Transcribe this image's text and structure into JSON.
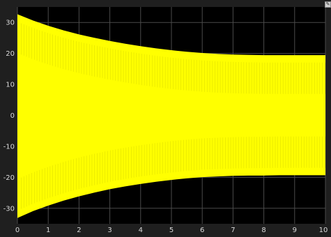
{
  "window": {
    "axes_menu_icon": "pencil-icon"
  },
  "colors": {
    "background": "#000000",
    "frame": "#1f1f1f",
    "grid": "#4a4a4a",
    "signal": "#ffff00",
    "tick_text": "#d9d9d9"
  },
  "chart_data": {
    "type": "line",
    "title": "",
    "xlabel": "",
    "ylabel": "",
    "xlim": [
      0,
      10
    ],
    "ylim": [
      -35,
      35
    ],
    "x_ticks": [
      0,
      1,
      2,
      3,
      4,
      5,
      6,
      7,
      8,
      9,
      10
    ],
    "y_ticks": [
      -30,
      -20,
      -10,
      0,
      10,
      20,
      30
    ],
    "grid": true,
    "legend": "none",
    "series": [
      {
        "color": "#ffff00",
        "description_of_shape": "",
        "upper_envelope": {
          "x": [
            0,
            0.5,
            1,
            1.5,
            2,
            2.5,
            3,
            3.5,
            4,
            4.5,
            5,
            5.5,
            6,
            6.5,
            7,
            7.5,
            8,
            8.5,
            9,
            9.5,
            10
          ],
          "y": [
            32.5,
            30.5,
            28.8,
            27.3,
            26.0,
            24.9,
            23.9,
            23.0,
            22.2,
            21.5,
            20.9,
            20.4,
            20.0,
            19.7,
            19.5,
            19.4,
            19.3,
            19.3,
            19.3,
            19.3,
            19.3
          ]
        },
        "lower_envelope": {
          "x": [
            0,
            0.5,
            1,
            1.5,
            2,
            2.5,
            3,
            3.5,
            4,
            4.5,
            5,
            5.5,
            6,
            6.5,
            7,
            7.5,
            8,
            8.5,
            9,
            9.5,
            10
          ],
          "y": [
            -33.0,
            -30.8,
            -29.0,
            -27.4,
            -26.0,
            -24.8,
            -23.7,
            -22.8,
            -22.0,
            -21.3,
            -20.7,
            -20.2,
            -19.8,
            -19.6,
            -19.4,
            -19.3,
            -19.3,
            -19.2,
            -19.2,
            -19.2,
            -19.2
          ]
        }
      }
    ]
  }
}
